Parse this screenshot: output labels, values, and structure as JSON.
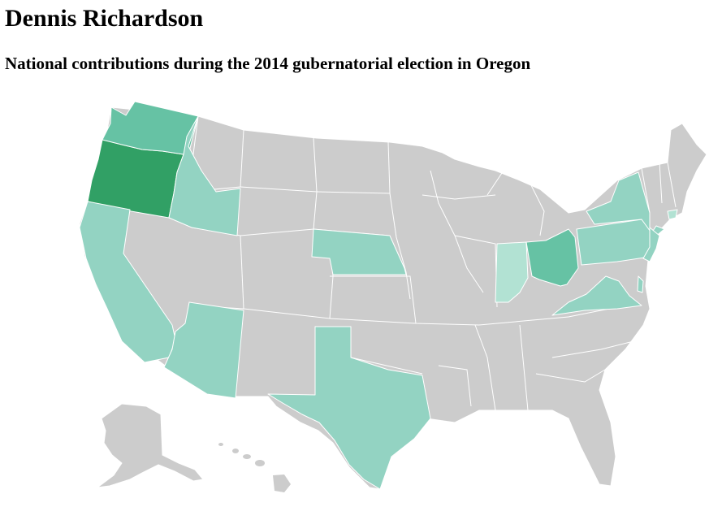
{
  "header": {
    "title": "Dennis Richardson",
    "subtitle": "National contributions during the 2014 gubernatorial election in Oregon"
  },
  "map": {
    "type": "choropleth",
    "region": "United States",
    "colors": {
      "no_contributions": "#cccccc",
      "lowest": "#b2e2d3",
      "low": "#93d3c2",
      "medium": "#66c2a4",
      "highest": "#31a065"
    },
    "states": [
      {
        "name": "Oregon",
        "level": "highest"
      },
      {
        "name": "Washington",
        "level": "medium"
      },
      {
        "name": "Ohio",
        "level": "medium"
      },
      {
        "name": "Idaho",
        "level": "low"
      },
      {
        "name": "California",
        "level": "low"
      },
      {
        "name": "Arizona",
        "level": "low"
      },
      {
        "name": "Nebraska",
        "level": "low"
      },
      {
        "name": "Texas",
        "level": "low"
      },
      {
        "name": "Virginia",
        "level": "low"
      },
      {
        "name": "Pennsylvania",
        "level": "low"
      },
      {
        "name": "New York",
        "level": "low"
      },
      {
        "name": "New Jersey",
        "level": "low"
      },
      {
        "name": "Delaware",
        "level": "low"
      },
      {
        "name": "Indiana",
        "level": "lowest"
      },
      {
        "name": "Connecticut",
        "level": "lowest"
      }
    ]
  }
}
